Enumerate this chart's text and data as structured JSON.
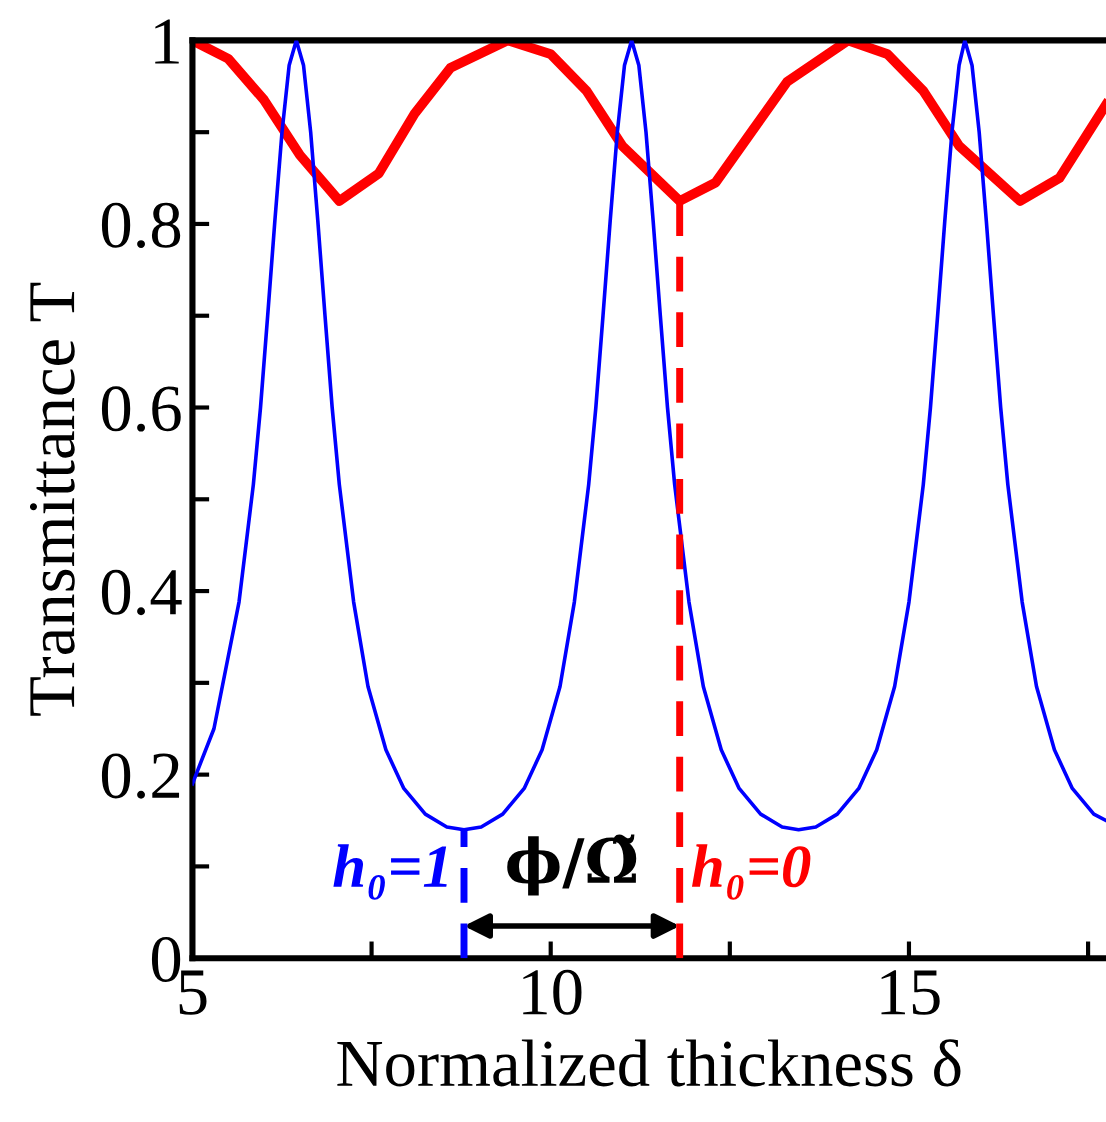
{
  "chart_data": {
    "type": "line",
    "xlabel": "Normalized thickness δ",
    "ylabel": "Transmittance T",
    "xlim": [
      5,
      17.75
    ],
    "ylim": [
      0,
      1
    ],
    "xticks": [
      5,
      10,
      15,
      {
        "value": 7.5,
        "label": null
      },
      {
        "value": 12.5,
        "label": null
      },
      {
        "value": 17.5,
        "label": null
      }
    ],
    "yticks": [
      0,
      0.2,
      0.4,
      0.6,
      0.8,
      1,
      {
        "value": 0.1,
        "label": null
      },
      {
        "value": 0.3,
        "label": null
      },
      {
        "value": 0.5,
        "label": null
      },
      {
        "value": 0.7,
        "label": null
      },
      {
        "value": 0.9,
        "label": null
      }
    ],
    "grid": false,
    "series": [
      {
        "color": "#ff0000",
        "x": [
          5,
          5.5,
          6.0,
          6.5,
          7.05,
          7.6,
          8.1,
          8.6,
          9.4,
          10.0,
          10.5,
          11.0,
          11.8,
          12.3,
          12.8,
          13.3,
          14.15,
          14.7,
          15.2,
          15.7,
          16.55,
          17.1,
          17.75
        ],
        "values": [
          1.0,
          0.98,
          0.935,
          0.875,
          0.825,
          0.855,
          0.92,
          0.97,
          1.0,
          0.985,
          0.945,
          0.885,
          0.825,
          0.845,
          0.9,
          0.955,
          1.0,
          0.985,
          0.945,
          0.885,
          0.825,
          0.85,
          0.93
        ]
      },
      {
        "color": "#0000ff",
        "x": [
          5,
          5.3,
          5.65,
          5.85,
          5.95,
          6.05,
          6.15,
          6.25,
          6.35,
          6.45,
          6.55,
          6.65,
          6.75,
          6.85,
          6.95,
          7.05,
          7.25,
          7.45,
          7.7,
          7.95,
          8.25,
          8.55,
          8.79,
          9.03,
          9.33,
          9.63,
          9.88,
          10.13,
          10.33,
          10.53,
          10.63,
          10.73,
          10.83,
          10.93,
          11.03,
          11.13,
          11.23,
          11.33,
          11.43,
          11.53,
          11.63,
          11.73,
          11.93,
          12.13,
          12.38,
          12.63,
          12.93,
          13.23,
          13.46,
          13.7,
          14.0,
          14.3,
          14.55,
          14.8,
          15.0,
          15.2,
          15.3,
          15.4,
          15.5,
          15.6,
          15.7,
          15.78,
          15.88,
          15.98,
          16.08,
          16.18,
          16.28,
          16.38,
          16.58,
          16.78,
          17.03,
          17.28,
          17.58,
          17.75
        ],
        "values": [
          0.19,
          0.25,
          0.388,
          0.516,
          0.6,
          0.7,
          0.803,
          0.9,
          0.973,
          1.0,
          0.973,
          0.9,
          0.803,
          0.7,
          0.6,
          0.516,
          0.388,
          0.296,
          0.227,
          0.185,
          0.157,
          0.143,
          0.14,
          0.143,
          0.157,
          0.185,
          0.227,
          0.296,
          0.388,
          0.516,
          0.6,
          0.7,
          0.803,
          0.9,
          0.973,
          1.0,
          0.973,
          0.9,
          0.803,
          0.7,
          0.6,
          0.516,
          0.388,
          0.296,
          0.227,
          0.185,
          0.157,
          0.143,
          0.14,
          0.143,
          0.157,
          0.185,
          0.227,
          0.296,
          0.388,
          0.516,
          0.6,
          0.7,
          0.803,
          0.9,
          0.973,
          1.0,
          0.973,
          0.9,
          0.803,
          0.7,
          0.6,
          0.516,
          0.388,
          0.296,
          0.227,
          0.185,
          0.157,
          0.15
        ]
      }
    ],
    "ref_lines": [
      {
        "axis": "x",
        "value": 8.79,
        "color": "#0000ff",
        "line_style": "dashed"
      },
      {
        "axis": "x",
        "value": 11.8,
        "color": "#ff0000",
        "line_style": "dashed"
      }
    ],
    "annotations": [
      "h₀=1",
      "h₀=0",
      {
        "text": "ϕ/Ω̃",
        "x": 11.8,
        "y": 0.035
      }
    ]
  }
}
